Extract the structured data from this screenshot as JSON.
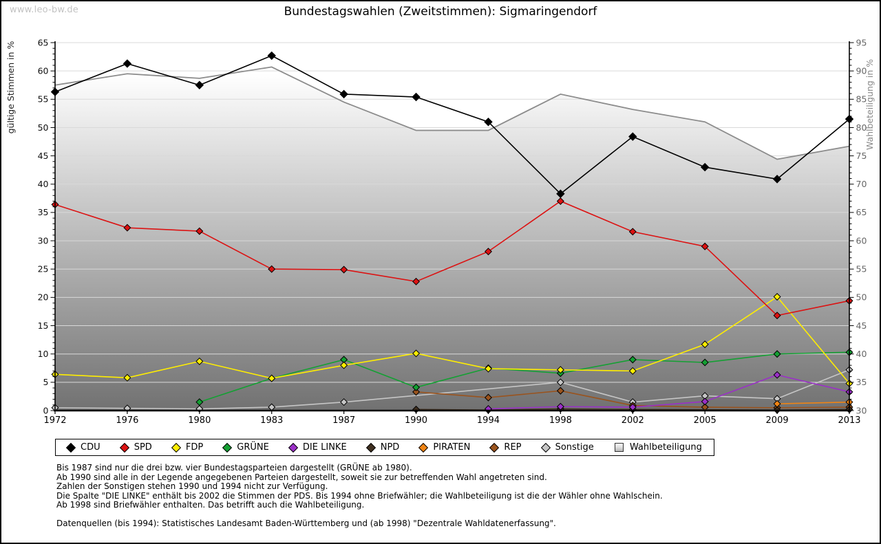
{
  "watermark": "www.leo-bw.de",
  "title": "Bundestagswahlen (Zweitstimmen): Sigmaringendorf",
  "chart_data": {
    "type": "line",
    "title": "Bundestagswahlen (Zweitstimmen): Sigmaringendorf",
    "x_categories": [
      "1972",
      "1976",
      "1980",
      "1983",
      "1987",
      "1990",
      "1994",
      "1998",
      "2002",
      "2005",
      "2009",
      "2013"
    ],
    "left_axis": {
      "label": "gültige Stimmen in %",
      "min": 0,
      "max": 65,
      "major_tick": 5,
      "minor_tick": 1
    },
    "right_axis": {
      "label": "Wahlbeteiligung in %",
      "min": 30,
      "max": 95,
      "major_tick": 5,
      "minor_tick": 1
    },
    "grid": true,
    "legend_position": "bottom",
    "series": [
      {
        "name": "CDU",
        "color": "#000000",
        "axis": "left",
        "style": "line",
        "values": [
          56.3,
          61.3,
          57.5,
          62.7,
          55.9,
          55.4,
          51.0,
          38.3,
          48.4,
          43.0,
          40.9,
          51.5
        ]
      },
      {
        "name": "SPD",
        "color": "#dc1212",
        "axis": "left",
        "style": "line",
        "values": [
          36.4,
          32.3,
          31.7,
          25.0,
          24.9,
          22.8,
          28.1,
          37.0,
          31.6,
          29.0,
          16.8,
          19.4
        ]
      },
      {
        "name": "FDP",
        "color": "#ffee00",
        "axis": "left",
        "style": "line",
        "values": [
          6.4,
          5.8,
          8.7,
          5.7,
          8.0,
          10.1,
          7.4,
          7.2,
          7.0,
          11.7,
          20.1,
          4.8
        ]
      },
      {
        "name": "GRÜNE",
        "color": "#14a033",
        "axis": "left",
        "style": "line",
        "values": [
          null,
          null,
          1.5,
          5.7,
          9.0,
          4.1,
          7.5,
          6.6,
          9.0,
          8.5,
          10.0,
          10.3
        ]
      },
      {
        "name": "DIE LINKE",
        "color": "#9b30c8",
        "axis": "left",
        "style": "line",
        "values": [
          null,
          null,
          null,
          null,
          null,
          null,
          0.3,
          0.7,
          0.6,
          1.6,
          6.3,
          3.3
        ]
      },
      {
        "name": "NPD",
        "color": "#3f2f1f",
        "axis": "left",
        "style": "line",
        "values": [
          null,
          null,
          null,
          null,
          null,
          0.2,
          0.1,
          0.3,
          0.2,
          null,
          0.1,
          0.2
        ]
      },
      {
        "name": "PIRATEN",
        "color": "#f08414",
        "axis": "left",
        "style": "line",
        "values": [
          null,
          null,
          null,
          null,
          null,
          null,
          null,
          null,
          null,
          null,
          1.2,
          1.5
        ]
      },
      {
        "name": "REP",
        "color": "#9a531d",
        "axis": "left",
        "style": "line",
        "values": [
          null,
          null,
          null,
          null,
          null,
          3.3,
          2.3,
          3.5,
          0.9,
          0.6,
          0.5,
          0.6
        ]
      },
      {
        "name": "Sonstige",
        "color": "#c6c6c6",
        "axis": "left",
        "style": "line",
        "values": [
          0.5,
          0.4,
          0.3,
          0.6,
          1.5,
          null,
          null,
          5.0,
          1.5,
          2.6,
          2.1,
          7.2
        ]
      },
      {
        "name": "Wahlbeteiligung",
        "color": "#8c8c8c",
        "axis": "right",
        "style": "area",
        "fill_gradient": [
          "#ffffff",
          "#707070"
        ],
        "values": [
          87.5,
          89.5,
          88.7,
          90.7,
          84.5,
          79.5,
          79.5,
          85.9,
          83.2,
          81.0,
          74.4,
          76.7
        ]
      }
    ]
  },
  "footnotes": [
    "Bis 1987 sind nur die drei bzw. vier Bundestagsparteien dargestellt (GRÜNE ab 1980).",
    "Ab 1990 sind alle in der Legende angegebenen Parteien dargestellt, soweit sie zur betreffenden Wahl angetreten sind.",
    "Zahlen der Sonstigen stehen 1990 und 1994 nicht zur Verfügung.",
    "Die Spalte \"DIE LINKE\" enthält bis 2002 die Stimmen der PDS. Bis 1994 ohne Briefwähler; die Wahlbeteiligung ist die der Wähler ohne Wahlschein.",
    "Ab 1998 sind Briefwähler enthalten. Das betrifft auch die Wahlbeteiligung.",
    "",
    "Datenquellen (bis 1994): Statistisches Landesamt Baden-Württemberg und (ab 1998) \"Dezentrale Wahldatenerfassung\"."
  ]
}
